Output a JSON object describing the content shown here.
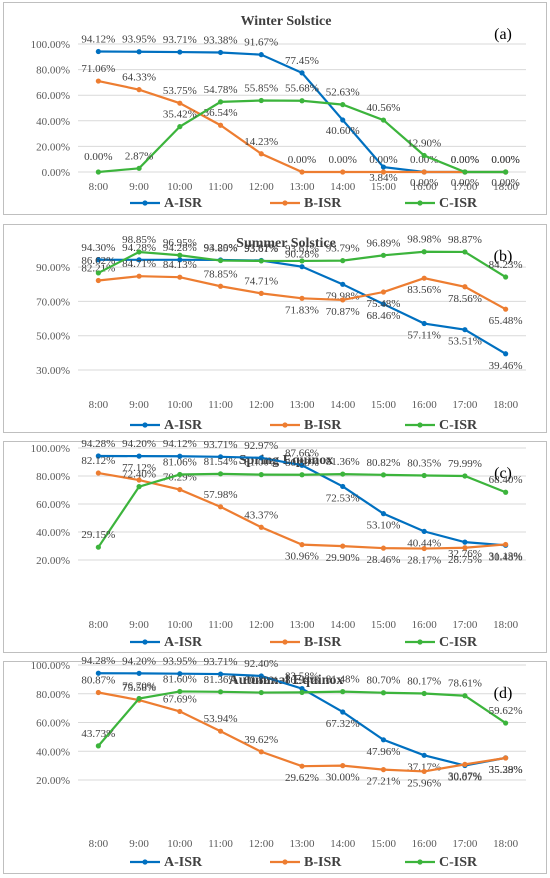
{
  "chart_data": [
    {
      "type": "line",
      "title": "Winter  Solstice",
      "panel_label": "(a)",
      "ylim": [
        0,
        100
      ],
      "y_ticks": [
        "0.00%",
        "20.00%",
        "40.00%",
        "60.00%",
        "80.00%",
        "100.00%"
      ],
      "y_tick_values": [
        0,
        20,
        40,
        60,
        80,
        100
      ],
      "categories": [
        "8:00",
        "9:00",
        "10:00",
        "11:00",
        "12:00",
        "13:00",
        "14:00",
        "15:00",
        "16:00",
        "17:00",
        "18:00"
      ],
      "series": [
        {
          "name": "A-ISR",
          "color": "#0070C0",
          "values": [
            94.12,
            93.95,
            93.71,
            93.38,
            91.67,
            77.45,
            40.6,
            3.84,
            0.0,
            0.0,
            0.0
          ],
          "labels": [
            "94.12%",
            "93.95%",
            "93.71%",
            "93.38%",
            "91.67%",
            "77.45%",
            "40.60%",
            "3.84%",
            "0.00%",
            "0.00%",
            "0.00%"
          ]
        },
        {
          "name": "B-ISR",
          "color": "#ED7D31",
          "values": [
            71.06,
            64.33,
            53.75,
            36.54,
            14.23,
            0.0,
            0.0,
            0.0,
            0.0,
            0.0,
            0.0
          ],
          "labels": [
            "71.06%",
            "64.33%",
            "53.75%",
            "36.54%",
            "14.23%",
            "0.00%",
            "0.00%",
            "0.00%",
            "0.00%",
            "0.00%",
            "0.00%"
          ]
        },
        {
          "name": "C-ISR",
          "color": "#3CB43C",
          "values": [
            0.0,
            2.87,
            35.42,
            54.78,
            55.85,
            55.68,
            52.63,
            40.56,
            12.9,
            0.0,
            0.0
          ],
          "labels": [
            "0.00%",
            "2.87%",
            "35.42%",
            "54.78%",
            "55.85%",
            "55.68%",
            "52.63%",
            "40.56%",
            "12.90%",
            "0.00%",
            "0.00%"
          ]
        }
      ]
    },
    {
      "type": "line",
      "title": "Summer Solstice",
      "panel_label": "(b)",
      "ylim": [
        30,
        100
      ],
      "y_ticks": [
        "30.00%",
        "50.00%",
        "70.00%",
        "90.00%"
      ],
      "y_tick_values": [
        30,
        50,
        70,
        90
      ],
      "categories": [
        "8:00",
        "9:00",
        "10:00",
        "11:00",
        "12:00",
        "13:00",
        "14:00",
        "15:00",
        "16:00",
        "17:00",
        "18:00"
      ],
      "series": [
        {
          "name": "A-ISR",
          "color": "#0070C0",
          "values": [
            94.3,
            94.28,
            94.28,
            94.2,
            93.87,
            90.28,
            79.98,
            68.46,
            57.11,
            53.51,
            39.46
          ],
          "labels": [
            "94.30%",
            "94.28%",
            "94.28%",
            "94.20%",
            "93.87%",
            "90.28%",
            "79.98%",
            "68.46%",
            "57.11%",
            "53.51%",
            "39.46%"
          ]
        },
        {
          "name": "B-ISR",
          "color": "#ED7D31",
          "values": [
            82.21,
            84.71,
            84.13,
            78.85,
            74.71,
            71.83,
            70.87,
            75.48,
            83.56,
            78.56,
            65.48
          ],
          "labels": [
            "82.21%",
            "84.71%",
            "84.13%",
            "78.85%",
            "74.71%",
            "71.83%",
            "70.87%",
            "75.48%",
            "83.56%",
            "78.56%",
            "65.48%"
          ]
        },
        {
          "name": "C-ISR",
          "color": "#3CB43C",
          "values": [
            86.62,
            98.85,
            96.95,
            93.85,
            93.61,
            93.61,
            93.79,
            96.89,
            98.98,
            98.87,
            84.23
          ],
          "labels": [
            "86.62%",
            "98.85%",
            "96.95%",
            "93.85%",
            "93.61%",
            "93.61%",
            "93.79%",
            "96.89%",
            "98.98%",
            "98.87%",
            "84.23%"
          ]
        }
      ]
    },
    {
      "type": "line",
      "title": "Spring Equinox",
      "panel_label": "(c)",
      "ylim": [
        20,
        100
      ],
      "y_ticks": [
        "20.00%",
        "40.00%",
        "60.00%",
        "80.00%",
        "100.00%"
      ],
      "y_tick_values": [
        20,
        40,
        60,
        80,
        100
      ],
      "categories": [
        "8:00",
        "9:00",
        "10:00",
        "11:00",
        "12:00",
        "13:00",
        "14:00",
        "15:00",
        "16:00",
        "17:00",
        "18:00"
      ],
      "series": [
        {
          "name": "A-ISR",
          "color": "#0070C0",
          "values": [
            94.28,
            94.2,
            94.12,
            93.71,
            92.97,
            87.66,
            72.53,
            53.1,
            40.44,
            32.76,
            30.48
          ],
          "labels": [
            "94.28%",
            "94.20%",
            "94.12%",
            "93.71%",
            "92.97%",
            "87.66%",
            "72.53%",
            "53.10%",
            "40.44%",
            "32.76%",
            "30.48%"
          ]
        },
        {
          "name": "B-ISR",
          "color": "#ED7D31",
          "values": [
            82.12,
            77.12,
            70.29,
            57.98,
            43.37,
            30.96,
            29.9,
            28.46,
            28.17,
            28.75,
            31.13
          ],
          "labels": [
            "82.12%",
            "77.12%",
            "70.29%",
            "57.98%",
            "43.37%",
            "30.96%",
            "29.90%",
            "28.46%",
            "28.17%",
            "28.75%",
            "31.13%"
          ]
        },
        {
          "name": "C-ISR",
          "color": "#3CB43C",
          "values": [
            29.15,
            72.4,
            81.06,
            81.54,
            81.0,
            80.88,
            81.36,
            80.82,
            80.35,
            79.99,
            68.4
          ],
          "labels": [
            "29.15%",
            "72.40%",
            "81.06%",
            "81.54%",
            "81.00%",
            "80.88%",
            "81.36%",
            "80.82%",
            "80.35%",
            "79.99%",
            "68.40%"
          ]
        }
      ]
    },
    {
      "type": "line",
      "title": "Autumnal Equinox",
      "panel_label": "(d)",
      "ylim": [
        20,
        100
      ],
      "y_ticks": [
        "20.00%",
        "40.00%",
        "60.00%",
        "80.00%",
        "100.00%"
      ],
      "y_tick_values": [
        20,
        40,
        60,
        80,
        100
      ],
      "categories": [
        "8:00",
        "9:00",
        "10:00",
        "11:00",
        "12:00",
        "13:00",
        "14:00",
        "15:00",
        "16:00",
        "17:00",
        "18:00"
      ],
      "series": [
        {
          "name": "A-ISR",
          "color": "#0070C0",
          "values": [
            94.28,
            94.2,
            93.95,
            93.71,
            92.4,
            83.58,
            67.32,
            47.96,
            37.17,
            30.07,
            35.38
          ],
          "labels": [
            "94.28%",
            "94.20%",
            "93.95%",
            "93.71%",
            "92.40%",
            "83.58%",
            "67.32%",
            "47.96%",
            "37.17%",
            "30.07%",
            "35.38%"
          ]
        },
        {
          "name": "B-ISR",
          "color": "#ED7D31",
          "values": [
            80.87,
            75.58,
            67.69,
            53.94,
            39.62,
            29.62,
            30.0,
            27.21,
            25.96,
            30.87,
            35.29
          ],
          "labels": [
            "80.87%",
            "75.58%",
            "67.69%",
            "53.94%",
            "39.62%",
            "29.62%",
            "30.00%",
            "27.21%",
            "25.96%",
            "30.87%",
            "35.29%"
          ]
        },
        {
          "name": "C-ISR",
          "color": "#3CB43C",
          "values": [
            43.73,
            76.7,
            81.6,
            81.36,
            80.82,
            80.94,
            81.48,
            80.7,
            80.17,
            78.61,
            59.62
          ],
          "labels": [
            "43.73%",
            "76.70%",
            "81.60%",
            "81.36%",
            "80.82%",
            "80.94%",
            "81.48%",
            "80.70%",
            "80.17%",
            "78.61%",
            "59.62%"
          ]
        }
      ]
    }
  ]
}
